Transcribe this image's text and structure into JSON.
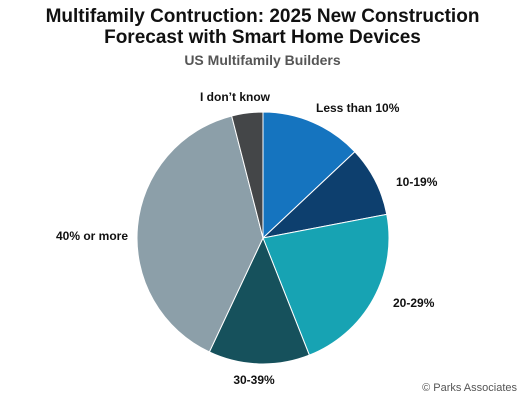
{
  "chart_data": {
    "type": "pie",
    "title_line1": "Multifamily Contruction: 2025 New Construction",
    "title_line2": "Forecast with Smart Home Devices",
    "subtitle": "US Multifamily Builders",
    "slices": [
      {
        "label": "Less than 10%",
        "value": 13,
        "color": "#1574bf"
      },
      {
        "label": "10-19%",
        "value": 9,
        "color": "#0d3f6e"
      },
      {
        "label": "20-29%",
        "value": 22,
        "color": "#17a3b3"
      },
      {
        "label": "30-39%",
        "value": 13,
        "color": "#16515c"
      },
      {
        "label": "40% or more",
        "value": 39,
        "color": "#8c9fa9"
      },
      {
        "label": "I don’t know",
        "value": 4,
        "color": "#444648"
      }
    ]
  },
  "credit": "© Parks Associates"
}
